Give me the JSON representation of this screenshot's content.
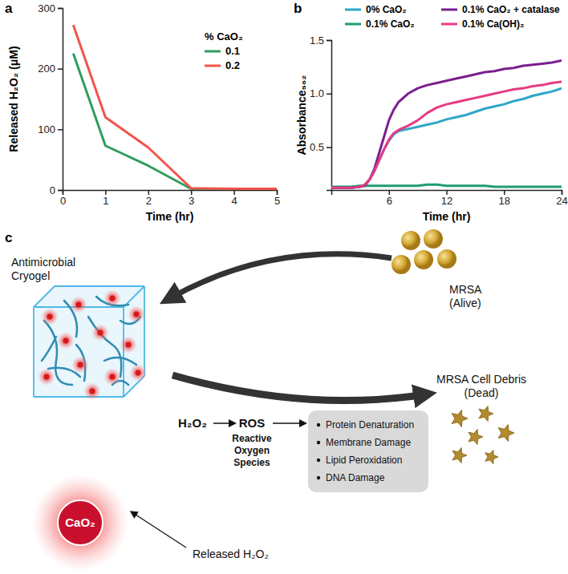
{
  "panel_labels": [
    "a",
    "b",
    "c"
  ],
  "chart_data": [
    {
      "type": "line",
      "x_label": "Time (hr)",
      "y_label": "Released H₂O₂ (μM)",
      "x": [
        0.25,
        1,
        2,
        3,
        4,
        5
      ],
      "series": [
        {
          "name": "0.1",
          "color": "#2e9e5e",
          "values": [
            225,
            73,
            40,
            2,
            1,
            1
          ]
        },
        {
          "name": "0.2",
          "color": "#f2544b",
          "values": [
            272,
            120,
            70,
            3,
            2,
            2
          ]
        }
      ],
      "xlim": [
        0,
        5
      ],
      "xticks": [
        0,
        1,
        2,
        3,
        4,
        5
      ],
      "ylim": [
        0,
        300
      ],
      "yticks": [
        0,
        100,
        200,
        300
      ],
      "grid": false,
      "legend": "top right",
      "legend_title": "% CaO₂"
    },
    {
      "type": "line",
      "x_label": "Time (hr)",
      "y_label": "Absorbance₅₆₂",
      "x": [
        0,
        1,
        2,
        3,
        3.5,
        4,
        4.5,
        5,
        5.5,
        6,
        6.5,
        7,
        8,
        9,
        10,
        11,
        12,
        13,
        14,
        15,
        16,
        17,
        18,
        19,
        20,
        21,
        22,
        23,
        24
      ],
      "series": [
        {
          "name": "0% CaO₂",
          "color": "#2ea6c6",
          "values": [
            0.12,
            0.12,
            0.12,
            0.13,
            0.15,
            0.2,
            0.28,
            0.38,
            0.48,
            0.56,
            0.62,
            0.65,
            0.67,
            0.69,
            0.71,
            0.73,
            0.76,
            0.78,
            0.8,
            0.83,
            0.86,
            0.88,
            0.9,
            0.93,
            0.95,
            0.98,
            1.0,
            1.02,
            1.05
          ]
        },
        {
          "name": "0.1% CaO₂",
          "color": "#1e9e6e",
          "values": [
            0.13,
            0.13,
            0.13,
            0.14,
            0.14,
            0.14,
            0.14,
            0.14,
            0.14,
            0.14,
            0.14,
            0.14,
            0.14,
            0.14,
            0.15,
            0.15,
            0.14,
            0.14,
            0.14,
            0.14,
            0.14,
            0.13,
            0.13,
            0.13,
            0.13,
            0.13,
            0.13,
            0.13,
            0.13
          ]
        },
        {
          "name": "0.1% CaO₂ + catalase",
          "color": "#7a1f8e",
          "values": [
            0.12,
            0.12,
            0.12,
            0.13,
            0.14,
            0.2,
            0.3,
            0.45,
            0.6,
            0.75,
            0.85,
            0.92,
            1.0,
            1.05,
            1.08,
            1.1,
            1.12,
            1.14,
            1.16,
            1.18,
            1.2,
            1.21,
            1.23,
            1.24,
            1.26,
            1.27,
            1.28,
            1.29,
            1.31
          ]
        },
        {
          "name": "0.1% Ca(OH)₂",
          "color": "#e83a84",
          "values": [
            0.12,
            0.12,
            0.12,
            0.13,
            0.15,
            0.2,
            0.28,
            0.38,
            0.48,
            0.57,
            0.63,
            0.66,
            0.7,
            0.75,
            0.82,
            0.87,
            0.9,
            0.92,
            0.94,
            0.96,
            0.98,
            1.0,
            1.02,
            1.04,
            1.05,
            1.07,
            1.08,
            1.1,
            1.11
          ]
        }
      ],
      "xlim": [
        0,
        24
      ],
      "xticks": [
        6,
        12,
        18,
        24
      ],
      "ylim": [
        0.1,
        1.5
      ],
      "yticks": [
        0.5,
        {
          "value": 1,
          "label": "1.0"
        },
        1.5
      ],
      "grid": false,
      "legend": "top"
    }
  ],
  "diagram": {
    "cryogel": [
      "Antimicrobial",
      "Cryogel"
    ],
    "alive": [
      "MRSA",
      "(Alive)"
    ],
    "dead": [
      "MRSA Cell Debris",
      "(Dead)"
    ],
    "pathway": {
      "start": "H₂O₂",
      "ros": "ROS",
      "ros_name": [
        "Reactive",
        "Oxygen",
        "Species"
      ],
      "effects": [
        "Protein Denaturation",
        "Membrane Damage",
        "Lipid Peroxidation",
        "DNA Damage"
      ]
    },
    "particle": "CaO₂",
    "release": "Released H₂O₂"
  }
}
